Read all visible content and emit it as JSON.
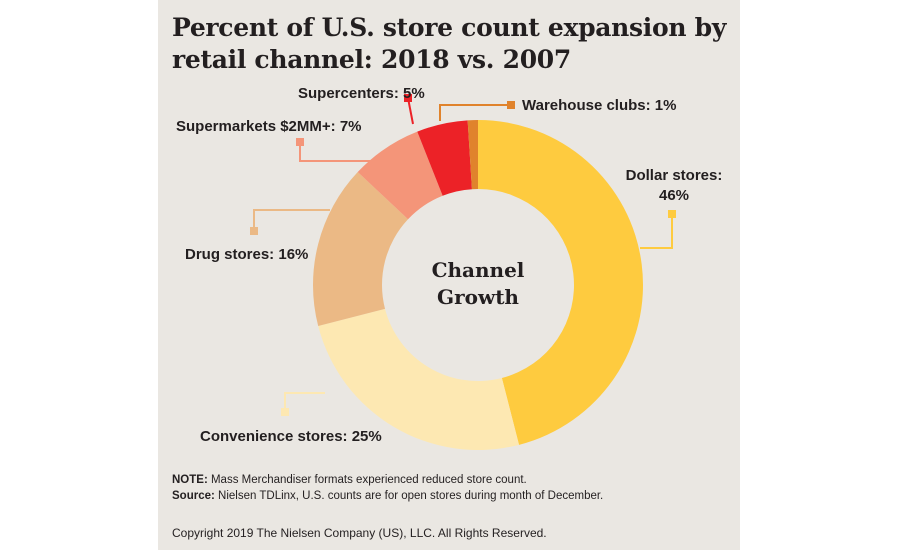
{
  "chart_data": {
    "type": "pie",
    "variant": "donut",
    "title": "Percent of U.S. store count expansion by retail channel: 2018 vs. 2007",
    "center_label": [
      "Channel",
      "Growth"
    ],
    "unit": "%",
    "slices": [
      {
        "name": "Dollar stores",
        "label": "Dollar stores:",
        "value_label": "46%",
        "value": 46,
        "color": "#fecb3f"
      },
      {
        "name": "Convenience stores",
        "label": "Convenience stores: 25%",
        "value": 25,
        "color": "#fde8b2"
      },
      {
        "name": "Drug stores",
        "label": "Drug stores: 16%",
        "value": 16,
        "color": "#ebb985"
      },
      {
        "name": "Supermarkets $2MM+",
        "label": "Supermarkets $2MM+: 7%",
        "value": 7,
        "color": "#f49579"
      },
      {
        "name": "Supercenters",
        "label": "Supercenters: 5%",
        "value": 5,
        "color": "#ec2227"
      },
      {
        "name": "Warehouse clubs",
        "label": "Warehouse clubs: 1%",
        "value": 1,
        "color": "#e0832c"
      }
    ]
  },
  "notes": {
    "note_key": "NOTE:",
    "note_text": " Mass Merchandiser formats experienced reduced store count.",
    "source_key": "Source:",
    "source_text": " Nielsen TDLinx, U.S. counts are for open stores during month of December."
  },
  "copyright": "Copyright 2019 The Nielsen Company (US), LLC. All Rights Reserved."
}
